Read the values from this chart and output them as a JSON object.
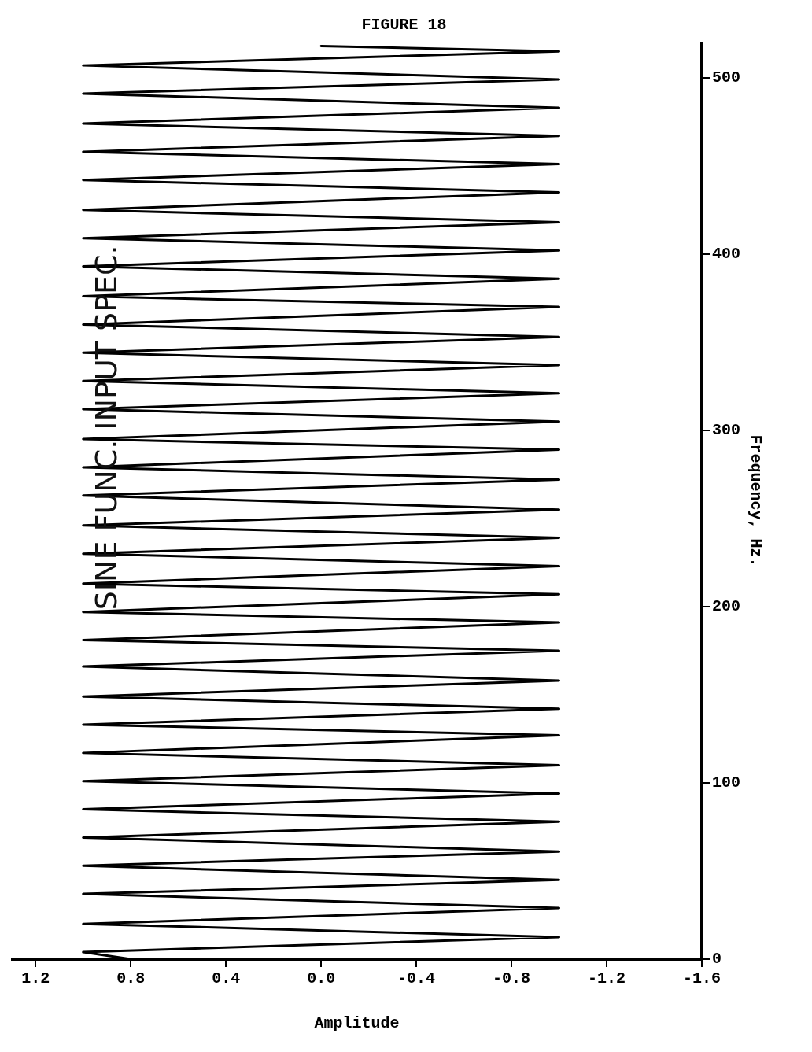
{
  "chart_data": {
    "type": "line",
    "title": "FIGURE 18",
    "xlabel": "Amplitude",
    "ylabel": "Frequency, Hz.",
    "annotations": [
      "SINE FUNC. INPUT SPEC."
    ],
    "ylim": [
      0,
      520
    ],
    "yticks": [
      0,
      100,
      200,
      300,
      400,
      500
    ],
    "xlim": [
      1.3,
      -1.6
    ],
    "xticks": [
      {
        "value": -1.6,
        "label": "-1.6"
      },
      {
        "value": -1.2,
        "label": "-1.2"
      },
      {
        "value": -0.8,
        "label": "-0.8"
      },
      {
        "value": -0.4,
        "label": "-0.4"
      },
      {
        "value": 0,
        "label": "0.0"
      },
      {
        "value": 0.4,
        "label": "0.4"
      },
      {
        "value": 0.8,
        "label": "0.8"
      },
      {
        "value": 1.2,
        "label": "1.2"
      }
    ],
    "grid": false,
    "legend": false,
    "marker": "none",
    "series": [
      {
        "color": "#000000",
        "values": [
          0,
          4,
          12.5,
          20,
          29,
          37,
          45,
          53,
          61,
          69,
          78,
          85,
          94,
          101,
          110,
          117,
          127,
          133,
          142,
          149,
          158,
          166,
          175,
          181,
          191,
          197,
          207,
          213,
          223,
          230,
          239,
          246,
          255,
          263,
          272,
          279,
          289,
          295,
          305,
          312,
          321,
          328,
          337,
          344,
          353,
          360,
          370,
          376,
          386,
          393,
          402,
          409,
          418,
          425,
          435,
          442,
          451,
          458,
          467,
          474,
          483,
          491,
          499,
          507,
          515,
          518
        ],
        "x": [
          0.8,
          1,
          -1,
          1,
          -1,
          1,
          -1,
          1,
          -1,
          1,
          -1,
          1,
          -1,
          1,
          -1,
          1,
          -1,
          1,
          -1,
          1,
          -1,
          1,
          -1,
          1,
          -1,
          1,
          -1,
          1,
          -1,
          1,
          -1,
          1,
          -1,
          1,
          -1,
          1,
          -1,
          1,
          -1,
          1,
          -1,
          1,
          -1,
          1,
          -1,
          1,
          -1,
          1,
          -1,
          1,
          -1,
          1,
          -1,
          1,
          -1,
          1,
          -1,
          1,
          -1,
          1,
          -1,
          1,
          -1,
          1,
          -1,
          0
        ]
      }
    ]
  }
}
